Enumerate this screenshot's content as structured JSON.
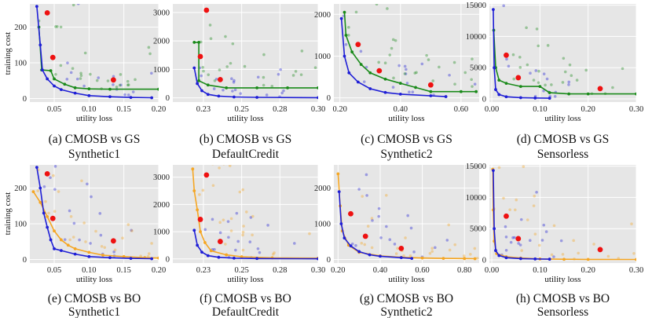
{
  "figure": {
    "ylabel": "training cost",
    "xlabel": "utility loss"
  },
  "colors": {
    "cmosb": "#1f1fd6",
    "gs": "#1a8a1a",
    "bo": "#f5a623",
    "red": "#ee1111",
    "panel_bg": "#e6e6e6"
  },
  "chart_data": [
    {
      "type": "scatter",
      "id": "a",
      "title": "(a) CMOSB vs GS",
      "subtitle": "Synthetic1",
      "baseline": "GS",
      "xlabel": "utility loss",
      "ylabel": "training cost",
      "xlim": [
        0.015,
        0.2
      ],
      "ylim": [
        -10,
        265
      ],
      "xticks": [
        0.05,
        0.1,
        0.15,
        0.2
      ],
      "xticklabels": [
        "0.05",
        "0.10",
        "0.15",
        "0.20"
      ],
      "yticks": [
        0,
        100,
        200
      ],
      "yticklabels": [
        "0",
        "100",
        "200"
      ],
      "cmosb_front": [
        [
          0.025,
          258
        ],
        [
          0.03,
          150
        ],
        [
          0.033,
          80
        ],
        [
          0.04,
          55
        ],
        [
          0.05,
          35
        ],
        [
          0.06,
          25
        ],
        [
          0.08,
          15
        ],
        [
          0.1,
          8
        ],
        [
          0.13,
          5
        ],
        [
          0.16,
          3
        ],
        [
          0.19,
          2
        ]
      ],
      "baseline_front": [
        [
          0.028,
          200
        ],
        [
          0.032,
          80
        ],
        [
          0.045,
          78
        ],
        [
          0.05,
          55
        ],
        [
          0.065,
          40
        ],
        [
          0.08,
          30
        ],
        [
          0.1,
          27
        ],
        [
          0.13,
          26
        ],
        [
          0.2,
          26
        ]
      ],
      "red": [
        [
          0.04,
          240
        ],
        [
          0.048,
          115
        ],
        [
          0.135,
          52
        ]
      ]
    },
    {
      "type": "scatter",
      "id": "b",
      "title": "(b) CMOSB vs GS",
      "subtitle": "DefaultCredit",
      "baseline": "GS",
      "xlabel": "utility loss",
      "ylabel": "training cost",
      "xlim": [
        0.205,
        0.3
      ],
      "ylim": [
        -150,
        3300
      ],
      "xticks": [
        0.225,
        0.25,
        0.275,
        0.3
      ],
      "xticklabels": [
        "0.23",
        "0.25",
        "0.28",
        "0.30"
      ],
      "yticks": [
        0,
        1000,
        2000,
        3000
      ],
      "yticklabels": [
        "0",
        "1000",
        "2000",
        "3000"
      ],
      "cmosb_front": [
        [
          0.219,
          1050
        ],
        [
          0.221,
          500
        ],
        [
          0.224,
          250
        ],
        [
          0.228,
          120
        ],
        [
          0.235,
          60
        ],
        [
          0.245,
          30
        ],
        [
          0.26,
          15
        ],
        [
          0.3,
          5
        ]
      ],
      "baseline_front": [
        [
          0.219,
          1950
        ],
        [
          0.222,
          1950
        ],
        [
          0.222,
          600
        ],
        [
          0.228,
          450
        ],
        [
          0.24,
          350
        ],
        [
          0.26,
          350
        ],
        [
          0.28,
          350
        ],
        [
          0.3,
          350
        ]
      ],
      "red": [
        [
          0.227,
          3080
        ],
        [
          0.223,
          1450
        ],
        [
          0.236,
          640
        ]
      ]
    },
    {
      "type": "scatter",
      "id": "c",
      "title": "(c) CMOSB vs GS",
      "subtitle": "Synthetic2",
      "baseline": "GS",
      "xlabel": "utility loss",
      "ylabel": "training cost",
      "xlim": [
        0.18,
        0.66
      ],
      "ylim": [
        -100,
        2250
      ],
      "xticks": [
        0.2,
        0.4,
        0.6
      ],
      "xticklabels": [
        "0.20",
        "0.40",
        "0.60"
      ],
      "yticks": [
        0,
        1000,
        2000
      ],
      "yticklabels": [
        "0",
        "1000",
        "2000"
      ],
      "cmosb_front": [
        [
          0.205,
          1900
        ],
        [
          0.215,
          1000
        ],
        [
          0.23,
          600
        ],
        [
          0.26,
          380
        ],
        [
          0.3,
          220
        ],
        [
          0.35,
          130
        ],
        [
          0.4,
          90
        ],
        [
          0.5,
          50
        ],
        [
          0.55,
          30
        ]
      ],
      "baseline_front": [
        [
          0.215,
          2050
        ],
        [
          0.22,
          1500
        ],
        [
          0.24,
          1100
        ],
        [
          0.27,
          800
        ],
        [
          0.3,
          600
        ],
        [
          0.35,
          450
        ],
        [
          0.4,
          350
        ],
        [
          0.45,
          250
        ],
        [
          0.5,
          150
        ],
        [
          0.6,
          150
        ],
        [
          0.65,
          150
        ]
      ],
      "red": [
        [
          0.26,
          1280
        ],
        [
          0.33,
          650
        ],
        [
          0.5,
          310
        ]
      ]
    },
    {
      "type": "scatter",
      "id": "d",
      "title": "(d) CMOSB vs GS",
      "subtitle": "Sensorless",
      "baseline": "GS",
      "xlabel": "utility loss",
      "ylabel": "training cost",
      "xlim": [
        -0.005,
        0.3
      ],
      "ylim": [
        -500,
        15200
      ],
      "xticks": [
        0.0,
        0.1,
        0.2,
        0.3
      ],
      "xticklabels": [
        "0.00",
        "0.10",
        "0.20",
        "0.30"
      ],
      "yticks": [
        0,
        5000,
        10000,
        15000
      ],
      "yticklabels": [
        "0",
        "5000",
        "10000",
        "15000"
      ],
      "cmosb_front": [
        [
          0.003,
          14300
        ],
        [
          0.005,
          5000
        ],
        [
          0.008,
          1500
        ],
        [
          0.015,
          700
        ],
        [
          0.03,
          350
        ],
        [
          0.06,
          200
        ],
        [
          0.09,
          150
        ],
        [
          0.12,
          120
        ]
      ],
      "baseline_front": [
        [
          0.004,
          11000
        ],
        [
          0.008,
          5000
        ],
        [
          0.015,
          3000
        ],
        [
          0.03,
          2500
        ],
        [
          0.06,
          2000
        ],
        [
          0.1,
          2000
        ],
        [
          0.12,
          1000
        ],
        [
          0.16,
          800
        ],
        [
          0.2,
          800
        ],
        [
          0.3,
          800
        ]
      ],
      "red": [
        [
          0.03,
          7000
        ],
        [
          0.055,
          3400
        ],
        [
          0.225,
          1650
        ]
      ]
    },
    {
      "type": "scatter",
      "id": "e",
      "title": "(e) CMOSB vs BO",
      "subtitle": "Synthetic1",
      "baseline": "BO",
      "xlabel": "utility loss",
      "ylabel": "training cost",
      "xlim": [
        0.015,
        0.2
      ],
      "ylim": [
        -10,
        265
      ],
      "xticks": [
        0.05,
        0.1,
        0.15,
        0.2
      ],
      "xticklabels": [
        "0.05",
        "0.10",
        "0.15",
        "0.20"
      ],
      "yticks": [
        0,
        100,
        200
      ],
      "yticklabels": [
        "0",
        "100",
        "200"
      ],
      "cmosb_front": [
        [
          0.025,
          258
        ],
        [
          0.03,
          200
        ],
        [
          0.035,
          130
        ],
        [
          0.04,
          90
        ],
        [
          0.045,
          55
        ],
        [
          0.05,
          30
        ],
        [
          0.06,
          25
        ],
        [
          0.08,
          15
        ],
        [
          0.1,
          8
        ],
        [
          0.13,
          5
        ],
        [
          0.16,
          3
        ],
        [
          0.19,
          2
        ]
      ],
      "baseline_front": [
        [
          0.02,
          190
        ],
        [
          0.03,
          160
        ],
        [
          0.04,
          120
        ],
        [
          0.05,
          80
        ],
        [
          0.06,
          55
        ],
        [
          0.07,
          40
        ],
        [
          0.08,
          30
        ],
        [
          0.1,
          20
        ],
        [
          0.12,
          12
        ],
        [
          0.15,
          8
        ],
        [
          0.18,
          5
        ],
        [
          0.2,
          4
        ]
      ],
      "red": [
        [
          0.04,
          240
        ],
        [
          0.048,
          115
        ],
        [
          0.135,
          52
        ]
      ]
    },
    {
      "type": "scatter",
      "id": "f",
      "title": "(f) CMOSB vs BO",
      "subtitle": "DefaultCredit",
      "baseline": "BO",
      "xlabel": "utility loss",
      "ylabel": "training cost",
      "xlim": [
        0.205,
        0.3
      ],
      "ylim": [
        -150,
        3450
      ],
      "xticks": [
        0.225,
        0.25,
        0.275,
        0.3
      ],
      "xticklabels": [
        "0.23",
        "0.25",
        "0.28",
        "0.30"
      ],
      "yticks": [
        0,
        1000,
        2000,
        3000
      ],
      "yticklabels": [
        "0",
        "1000",
        "2000",
        "3000"
      ],
      "cmosb_front": [
        [
          0.219,
          1050
        ],
        [
          0.221,
          500
        ],
        [
          0.224,
          250
        ],
        [
          0.228,
          120
        ],
        [
          0.235,
          60
        ],
        [
          0.245,
          30
        ],
        [
          0.26,
          15
        ],
        [
          0.3,
          5
        ]
      ],
      "baseline_front": [
        [
          0.218,
          3300
        ],
        [
          0.219,
          2500
        ],
        [
          0.221,
          1800
        ],
        [
          0.223,
          1000
        ],
        [
          0.226,
          600
        ],
        [
          0.23,
          300
        ],
        [
          0.24,
          150
        ],
        [
          0.25,
          80
        ],
        [
          0.27,
          40
        ],
        [
          0.3,
          30
        ]
      ],
      "red": [
        [
          0.227,
          3080
        ],
        [
          0.223,
          1450
        ],
        [
          0.236,
          640
        ]
      ]
    },
    {
      "type": "scatter",
      "id": "g",
      "title": "(g) CMOSB vs BO",
      "subtitle": "Synthetic2",
      "baseline": "BO",
      "xlabel": "utility loss",
      "ylabel": "training cost",
      "xlim": [
        0.18,
        0.87
      ],
      "ylim": [
        -100,
        2650
      ],
      "xticks": [
        0.2,
        0.4,
        0.6,
        0.8
      ],
      "xticklabels": [
        "0.20",
        "0.40",
        "0.60",
        "0.80"
      ],
      "yticks": [
        0,
        1000,
        2000
      ],
      "yticklabels": [
        "0",
        "1000",
        "2000"
      ],
      "cmosb_front": [
        [
          0.205,
          1900
        ],
        [
          0.215,
          1000
        ],
        [
          0.23,
          600
        ],
        [
          0.26,
          380
        ],
        [
          0.3,
          220
        ],
        [
          0.35,
          130
        ],
        [
          0.4,
          90
        ],
        [
          0.5,
          50
        ],
        [
          0.55,
          30
        ]
      ],
      "baseline_front": [
        [
          0.2,
          2400
        ],
        [
          0.21,
          1500
        ],
        [
          0.22,
          800
        ],
        [
          0.25,
          400
        ],
        [
          0.3,
          200
        ],
        [
          0.4,
          100
        ],
        [
          0.5,
          60
        ],
        [
          0.6,
          40
        ],
        [
          0.7,
          30
        ],
        [
          0.8,
          25
        ],
        [
          0.85,
          20
        ]
      ],
      "red": [
        [
          0.26,
          1280
        ],
        [
          0.33,
          650
        ],
        [
          0.5,
          310
        ]
      ]
    },
    {
      "type": "scatter",
      "id": "h",
      "title": "(h) CMOSB vs BO",
      "subtitle": "Sensorless",
      "baseline": "BO",
      "xlabel": "utility loss",
      "ylabel": "training cost",
      "xlim": [
        -0.005,
        0.3
      ],
      "ylim": [
        -500,
        15200
      ],
      "xticks": [
        0.0,
        0.1,
        0.2,
        0.3
      ],
      "xticklabels": [
        "0.00",
        "0.10",
        "0.20",
        "0.30"
      ],
      "yticks": [
        0,
        5000,
        10000,
        15000
      ],
      "yticklabels": [
        "0",
        "5000",
        "10000",
        "15000"
      ],
      "cmosb_front": [
        [
          0.003,
          14300
        ],
        [
          0.005,
          5000
        ],
        [
          0.008,
          1500
        ],
        [
          0.015,
          700
        ],
        [
          0.03,
          350
        ],
        [
          0.06,
          200
        ],
        [
          0.09,
          150
        ],
        [
          0.12,
          120
        ]
      ],
      "baseline_front": [
        [
          0.002,
          14500
        ],
        [
          0.003,
          8000
        ],
        [
          0.005,
          3000
        ],
        [
          0.01,
          1000
        ],
        [
          0.03,
          500
        ],
        [
          0.06,
          300
        ],
        [
          0.1,
          150
        ],
        [
          0.15,
          100
        ],
        [
          0.2,
          80
        ],
        [
          0.3,
          60
        ]
      ],
      "red": [
        [
          0.03,
          7000
        ],
        [
          0.055,
          3400
        ],
        [
          0.225,
          1650
        ]
      ]
    }
  ]
}
